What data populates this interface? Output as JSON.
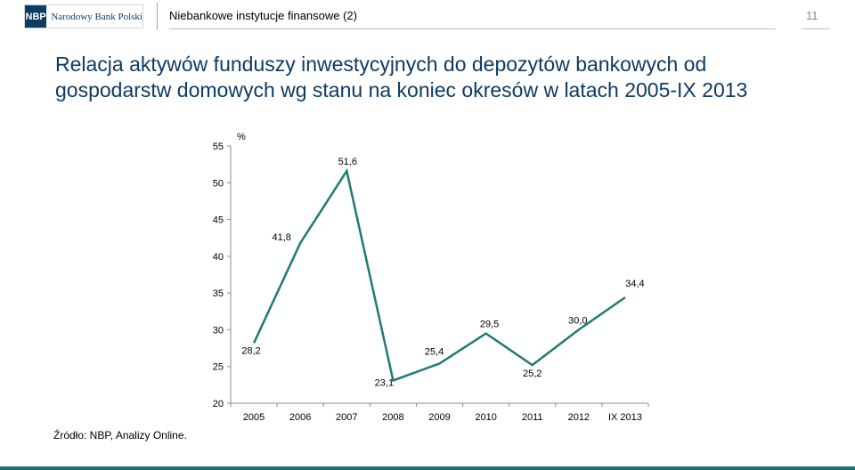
{
  "header": {
    "logo_mark": "NBP",
    "logo_text": "Narodowy Bank Polski",
    "section_title": "Niebankowe instytucje finansowe (2)",
    "page_number": "11"
  },
  "title": "Relacja aktywów funduszy inwestycyjnych do depozytów bankowych od gospodarstw domowych wg stanu na koniec okresów w latach 2005-IX 2013",
  "source": "Źródło: NBP, Analizy Online.",
  "colors": {
    "line": "#1f7a74",
    "title": "#0c3b64",
    "brand": "#0c3b64"
  },
  "chart_data": {
    "type": "line",
    "title": "",
    "xlabel": "",
    "ylabel": "%",
    "categories": [
      "2005",
      "2006",
      "2007",
      "2008",
      "2009",
      "2010",
      "2011",
      "2012",
      "IX 2013"
    ],
    "series": [
      {
        "values": [
          28.2,
          41.8,
          51.6,
          23.1,
          25.4,
          29.5,
          25.2,
          30.0,
          34.4
        ]
      }
    ],
    "data_labels": [
      "28,2",
      "41,8",
      "51,6",
      "23,1",
      "25,4",
      "29,5",
      "25,2",
      "30,0",
      "34,4"
    ],
    "yticks": [
      "20",
      "25",
      "30",
      "35",
      "40",
      "45",
      "50",
      "55"
    ],
    "ylim": [
      20,
      55
    ],
    "grid": false,
    "legend": "none"
  }
}
